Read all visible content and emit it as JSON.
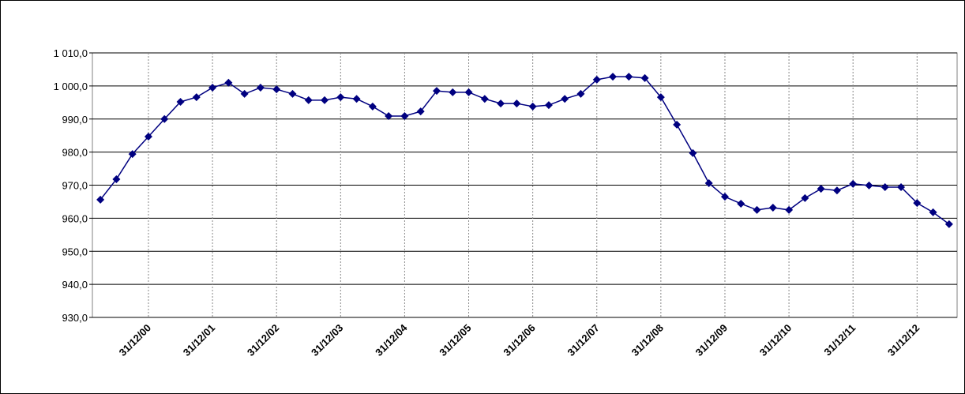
{
  "chart_data": {
    "type": "line",
    "categories": [
      null,
      null,
      null,
      "31/12/00",
      null,
      null,
      null,
      "31/12/01",
      null,
      null,
      null,
      "31/12/02",
      null,
      null,
      null,
      "31/12/03",
      null,
      null,
      null,
      "31/12/04",
      null,
      null,
      null,
      "31/12/05",
      null,
      null,
      null,
      "31/12/06",
      null,
      null,
      null,
      "31/12/07",
      null,
      null,
      null,
      "31/12/08",
      null,
      null,
      null,
      "31/12/09",
      null,
      null,
      null,
      "31/12/10",
      null,
      null,
      null,
      "31/12/11",
      null,
      null,
      null,
      "31/12/12",
      null,
      null
    ],
    "series": [
      {
        "color": "#000080",
        "values": [
          965.6,
          971.8,
          979.4,
          984.7,
          990.0,
          995.2,
          996.6,
          999.5,
          1001.0,
          997.6,
          999.5,
          999.0,
          997.6,
          995.7,
          995.7,
          996.6,
          996.1,
          993.8,
          990.9,
          990.9,
          992.3,
          998.5,
          998.1,
          998.1,
          996.1,
          994.7,
          994.7,
          993.8,
          994.2,
          996.1,
          997.6,
          1001.9,
          1002.8,
          1002.8,
          1002.4,
          996.6,
          988.3,
          979.7,
          970.6,
          966.5,
          964.4,
          962.5,
          963.2,
          962.5,
          966.1,
          968.9,
          968.4,
          970.4,
          969.9,
          969.4,
          969.4,
          964.6,
          961.8,
          958.2
        ]
      }
    ],
    "ylim": [
      930,
      1010
    ],
    "yticks": [
      {
        "value": 930,
        "label": "930,0"
      },
      {
        "value": 940,
        "label": "940,0"
      },
      {
        "value": 950,
        "label": "950,0"
      },
      {
        "value": 960,
        "label": "960,0"
      },
      {
        "value": 970,
        "label": "970,0"
      },
      {
        "value": 980,
        "label": "980,0"
      },
      {
        "value": 990,
        "label": "990,0"
      },
      {
        "value": 1000,
        "label": "1 000,0"
      },
      {
        "value": 1010,
        "label": "1 010,0"
      }
    ],
    "grid": true
  }
}
